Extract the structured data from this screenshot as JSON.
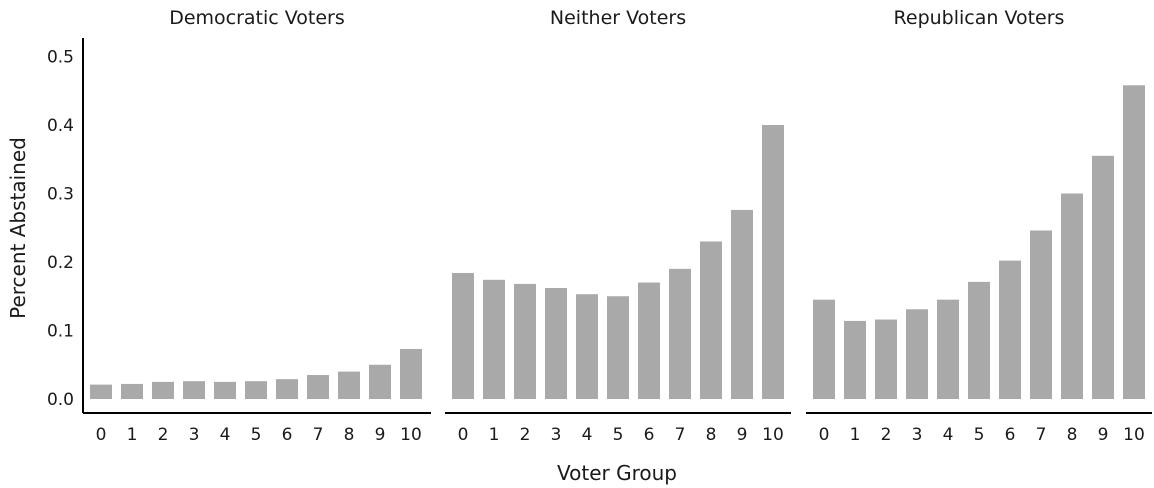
{
  "chart_data": {
    "type": "bar",
    "xlabel": "Voter Group",
    "ylabel": "Percent Abstained",
    "ylim": [
      0,
      0.52
    ],
    "y_ticks": [
      "0.0",
      "0.1",
      "0.2",
      "0.3",
      "0.4",
      "0.5"
    ],
    "y_tick_values": [
      0,
      0.1,
      0.2,
      0.3,
      0.4,
      0.5
    ],
    "categories": [
      "0",
      "1",
      "2",
      "3",
      "4",
      "5",
      "6",
      "7",
      "8",
      "9",
      "10"
    ],
    "bar_color": "#a9a9a9",
    "grid": false,
    "legend": "none",
    "facets": [
      {
        "title": "Democratic Voters",
        "values": [
          0.021,
          0.022,
          0.025,
          0.026,
          0.025,
          0.026,
          0.029,
          0.035,
          0.04,
          0.05,
          0.073
        ]
      },
      {
        "title": "Neither Voters",
        "values": [
          0.184,
          0.174,
          0.168,
          0.162,
          0.153,
          0.15,
          0.17,
          0.19,
          0.23,
          0.276,
          0.4
        ]
      },
      {
        "title": "Republican Voters",
        "values": [
          0.145,
          0.114,
          0.116,
          0.131,
          0.145,
          0.171,
          0.202,
          0.246,
          0.3,
          0.355,
          0.458
        ]
      }
    ]
  }
}
